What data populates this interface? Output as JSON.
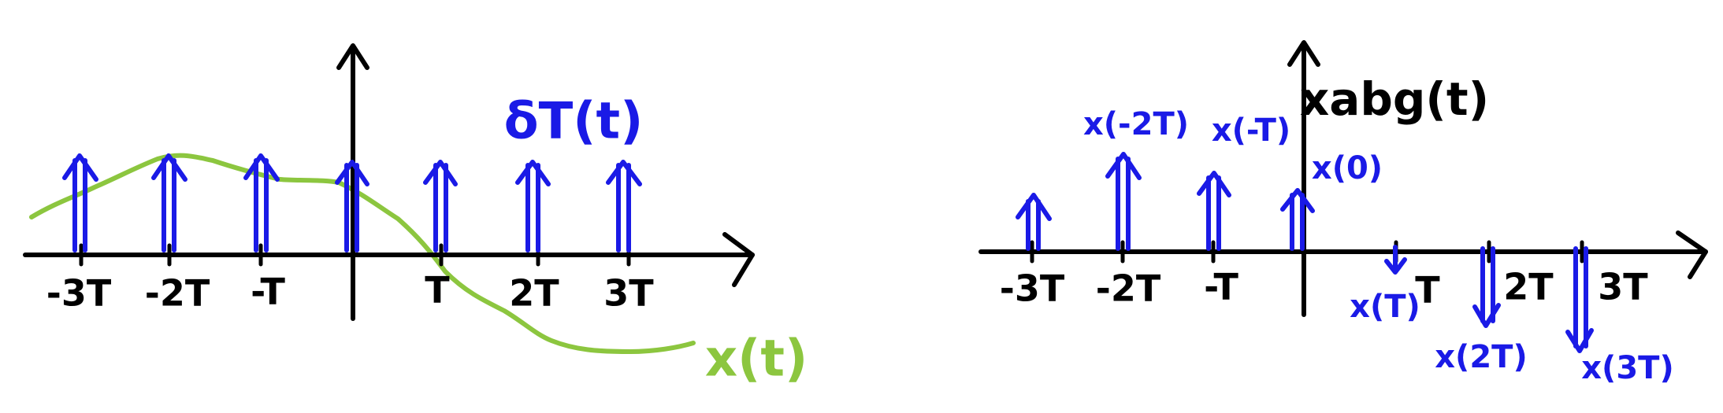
{
  "colors": {
    "axis": "#000000",
    "impulse": "#1a1ae6",
    "signal": "#8cc63f"
  },
  "left_panel": {
    "tick_labels": [
      "-3T",
      "-2T",
      "-T",
      "T",
      "2T",
      "3T"
    ],
    "impulse_label": "δT(t)",
    "signal_label": "x(t)"
  },
  "right_panel": {
    "tick_labels": [
      "-3T",
      "-2T",
      "-T",
      "T",
      "2T",
      "3T"
    ],
    "output_label": "xabg(t)",
    "sample_labels": [
      "x(-2T)",
      "x(-T)",
      "x(0)",
      "x(T)",
      "x(2T)",
      "x(3T)"
    ]
  }
}
